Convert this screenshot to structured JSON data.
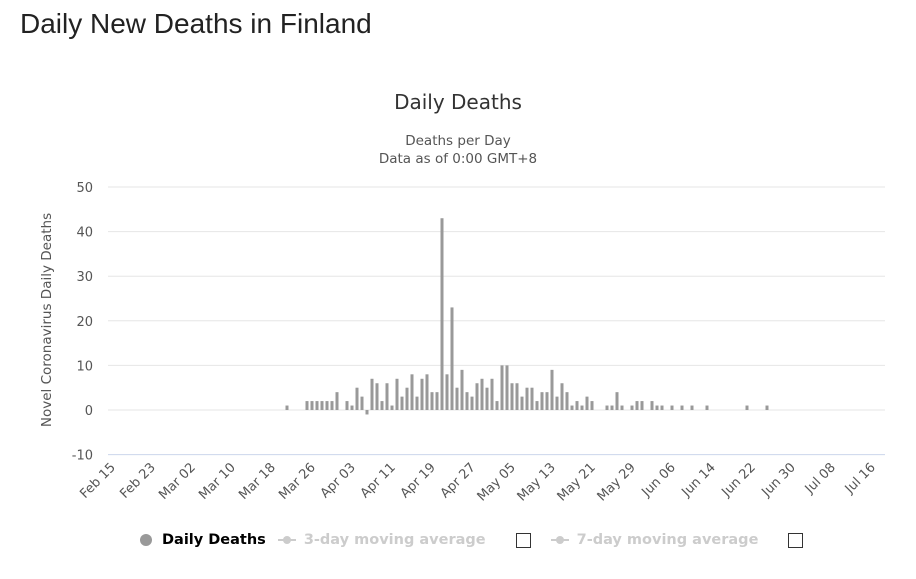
{
  "page_title": "Daily New Deaths in Finland",
  "chart_data": {
    "type": "bar",
    "title": "Daily Deaths",
    "subtitle_lines": [
      "Deaths per Day",
      "Data as of 0:00 GMT+8"
    ],
    "ylabel": "Novel Coronavirus Daily Deaths",
    "ylim": [
      -10,
      50
    ],
    "yticks": [
      -10,
      0,
      10,
      20,
      30,
      40,
      50
    ],
    "grid": true,
    "xticks": [
      "Feb 15",
      "Feb 23",
      "Mar 02",
      "Mar 10",
      "Mar 18",
      "Mar 26",
      "Apr 03",
      "Apr 11",
      "Apr 19",
      "Apr 27",
      "May 05",
      "May 13",
      "May 21",
      "May 29",
      "Jun 06",
      "Jun 14",
      "Jun 22",
      "Jun 30",
      "Jul 08",
      "Jul 16"
    ],
    "x": [
      "Feb 15",
      "Feb 16",
      "Feb 17",
      "Feb 18",
      "Feb 19",
      "Feb 20",
      "Feb 21",
      "Feb 22",
      "Feb 23",
      "Feb 24",
      "Feb 25",
      "Feb 26",
      "Feb 27",
      "Feb 28",
      "Feb 29",
      "Mar 01",
      "Mar 02",
      "Mar 03",
      "Mar 04",
      "Mar 05",
      "Mar 06",
      "Mar 07",
      "Mar 08",
      "Mar 09",
      "Mar 10",
      "Mar 11",
      "Mar 12",
      "Mar 13",
      "Mar 14",
      "Mar 15",
      "Mar 16",
      "Mar 17",
      "Mar 18",
      "Mar 19",
      "Mar 20",
      "Mar 21",
      "Mar 22",
      "Mar 23",
      "Mar 24",
      "Mar 25",
      "Mar 26",
      "Mar 27",
      "Mar 28",
      "Mar 29",
      "Mar 30",
      "Mar 31",
      "Apr 01",
      "Apr 02",
      "Apr 03",
      "Apr 04",
      "Apr 05",
      "Apr 06",
      "Apr 07",
      "Apr 08",
      "Apr 09",
      "Apr 10",
      "Apr 11",
      "Apr 12",
      "Apr 13",
      "Apr 14",
      "Apr 15",
      "Apr 16",
      "Apr 17",
      "Apr 18",
      "Apr 19",
      "Apr 20",
      "Apr 21",
      "Apr 22",
      "Apr 23",
      "Apr 24",
      "Apr 25",
      "Apr 26",
      "Apr 27",
      "Apr 28",
      "Apr 29",
      "Apr 30",
      "May 01",
      "May 02",
      "May 03",
      "May 04",
      "May 05",
      "May 06",
      "May 07",
      "May 08",
      "May 09",
      "May 10",
      "May 11",
      "May 12",
      "May 13",
      "May 14",
      "May 15",
      "May 16",
      "May 17",
      "May 18",
      "May 19",
      "May 20",
      "May 21",
      "May 22",
      "May 23",
      "May 24",
      "May 25",
      "May 26",
      "May 27",
      "May 28",
      "May 29",
      "May 30",
      "May 31",
      "Jun 01",
      "Jun 02",
      "Jun 03",
      "Jun 04",
      "Jun 05",
      "Jun 06",
      "Jun 07",
      "Jun 08",
      "Jun 09",
      "Jun 10",
      "Jun 11",
      "Jun 12",
      "Jun 13",
      "Jun 14",
      "Jun 15",
      "Jun 16",
      "Jun 17",
      "Jun 18",
      "Jun 19",
      "Jun 20",
      "Jun 21",
      "Jun 22",
      "Jun 23",
      "Jun 24",
      "Jun 25",
      "Jun 26",
      "Jun 27",
      "Jun 28",
      "Jun 29",
      "Jun 30"
    ],
    "series": [
      {
        "name": "Daily Deaths",
        "color": "#999999",
        "values": [
          0,
          0,
          0,
          0,
          0,
          0,
          0,
          0,
          0,
          0,
          0,
          0,
          0,
          0,
          0,
          0,
          0,
          0,
          0,
          0,
          0,
          0,
          0,
          0,
          0,
          0,
          0,
          0,
          0,
          0,
          0,
          0,
          0,
          0,
          0,
          1,
          0,
          0,
          0,
          2,
          2,
          2,
          2,
          2,
          2,
          4,
          0,
          2,
          1,
          5,
          3,
          -1,
          7,
          6,
          2,
          6,
          1,
          7,
          3,
          5,
          8,
          3,
          7,
          8,
          4,
          4,
          43,
          8,
          23,
          5,
          9,
          4,
          3,
          6,
          7,
          5,
          7,
          2,
          10,
          10,
          6,
          6,
          3,
          5,
          5,
          2,
          4,
          4,
          9,
          3,
          6,
          4,
          1,
          2,
          1,
          3,
          2,
          0,
          0,
          1,
          1,
          4,
          1,
          0,
          1,
          2,
          2,
          0,
          2,
          1,
          1,
          0,
          1,
          0,
          1,
          0,
          1,
          0,
          0,
          1,
          0,
          0,
          0,
          0,
          0,
          0,
          0,
          1,
          0,
          0,
          0,
          1,
          0,
          0,
          0,
          0,
          0
        ]
      }
    ],
    "legend": {
      "placement": "bottom",
      "items": [
        {
          "label": "Daily Deaths",
          "active": true
        },
        {
          "label": "3-day moving average",
          "active": false
        },
        {
          "label": "7-day moving average",
          "active": false
        }
      ]
    }
  }
}
